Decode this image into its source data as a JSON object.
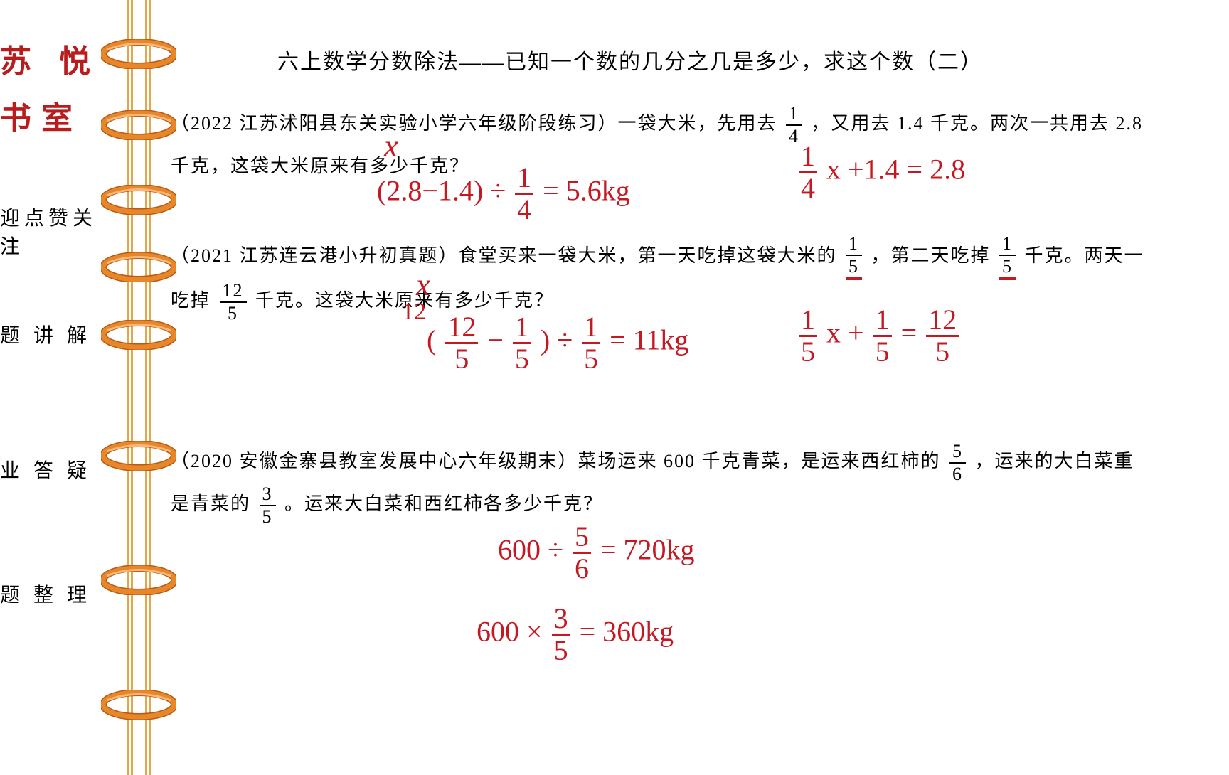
{
  "sidebar": {
    "logo_line1": "苏 悦",
    "logo_line2": "书室",
    "text1": "迎点赞关注",
    "text2": "题 讲 解",
    "text3": "业 答 疑",
    "text4": "题 整 理"
  },
  "title": "六上数学分数除法——已知一个数的几分之几是多少，求这个数（二）",
  "problem1": {
    "source": "（2022 江苏沭阳县东关实验小学六年级阶段练习）一袋大米，先用去",
    "frac1_num": "1",
    "frac1_den": "4",
    "mid": "，又用去 1.4 千克。两次一共用去 2.8",
    "line2": "千克，这袋大米原来有多少千克？"
  },
  "problem2": {
    "source": "（2021 江苏连云港小升初真题）食堂买来一袋大米，第一天吃掉这袋大米的",
    "frac1_num": "1",
    "frac1_den": "5",
    "mid": "，第二天吃掉",
    "frac2_num": "1",
    "frac2_den": "5",
    "end": "千克。两天一",
    "line2_a": "吃掉",
    "line2_frac_num": "12",
    "line2_frac_den": "5",
    "line2_b": "千克。这袋大米原来有多少千克？"
  },
  "problem3": {
    "source": "（2020 安徽金寨县教室发展中心六年级期末）菜场运来 600 千克青菜，是运来西红柿的",
    "frac1_num": "5",
    "frac1_den": "6",
    "mid": "，运来的大白菜重",
    "line2_a": "是青菜的",
    "line2_frac_num": "3",
    "line2_frac_den": "5",
    "line2_b": "。运来大白菜和西红柿各多少千克？"
  },
  "handwriting": {
    "x1": "x",
    "h1": "(2.8−1.4) ÷",
    "h1_frac_n": "1",
    "h1_frac_d": "4",
    "h1_end": " = 5.6kg",
    "h2_a": "x +1.4 = 2.8",
    "h2_frac_n": "1",
    "h2_frac_d": "4",
    "x2": "x",
    "h3_open": "(",
    "h3_f1n": "12",
    "h3_f1d": "5",
    "h3_minus": " − ",
    "h3_f2n": "1",
    "h3_f2d": "5",
    "h3_div": ") ÷ ",
    "h3_f3n": "1",
    "h3_f3d": "5",
    "h3_eq": " = 11kg",
    "h4_f1n": "1",
    "h4_f1d": "5",
    "h4_x": "x + ",
    "h4_f2n": "1",
    "h4_f2d": "5",
    "h4_eq": " = ",
    "h4_f3n": "12",
    "h4_f3d": "5",
    "note12": "12",
    "h5_a": "600 ÷ ",
    "h5_fn": "5",
    "h5_fd": "6",
    "h5_eq": " = 720kg",
    "h6_a": "600 × ",
    "h6_fn": "3",
    "h6_fd": "5",
    "h6_eq": " = 360kg"
  },
  "binder": {
    "ring_positions": [
      75,
      175,
      280,
      375,
      470,
      640,
      815,
      990
    ],
    "ring_color": "#e8862a",
    "ring_highlight": "#f6b878",
    "ring_shadow": "#b85a15"
  }
}
